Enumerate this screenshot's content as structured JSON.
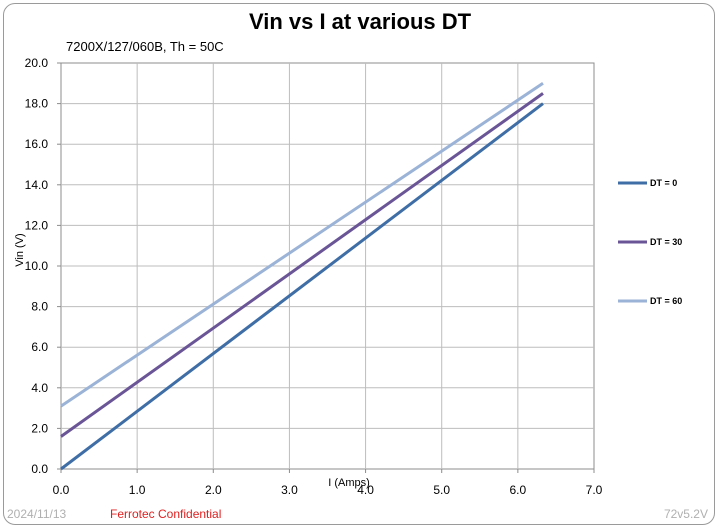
{
  "chart_data": {
    "type": "line",
    "title": "Vin vs I at various DT",
    "subtitle": "7200X/127/060B, Th = 50C",
    "xlabel": "I (Amps)",
    "ylabel": "Vin (V)",
    "xlim": [
      0,
      7
    ],
    "ylim": [
      0,
      20
    ],
    "xticks": [
      "0.0",
      "1.0",
      "2.0",
      "3.0",
      "4.0",
      "5.0",
      "6.0",
      "7.0"
    ],
    "yticks": [
      "0.0",
      "2.0",
      "4.0",
      "6.0",
      "8.0",
      "10.0",
      "12.0",
      "14.0",
      "16.0",
      "18.0",
      "20.0"
    ],
    "grid": true,
    "legend_position": "right",
    "series": [
      {
        "name": "DT = 0",
        "color": "#3f6ea6",
        "x": [
          0,
          6.33
        ],
        "y": [
          0.0,
          18.0
        ]
      },
      {
        "name": "DT = 30",
        "color": "#6a5597",
        "x": [
          0,
          6.33
        ],
        "y": [
          1.6,
          18.5
        ]
      },
      {
        "name": "DT = 60",
        "color": "#9bb3d6",
        "x": [
          0,
          6.33
        ],
        "y": [
          3.1,
          19.0
        ]
      }
    ]
  },
  "footer": {
    "date": "2024/11/13",
    "confidential": "Ferrotec Confidential",
    "version": "72v5.2V"
  }
}
